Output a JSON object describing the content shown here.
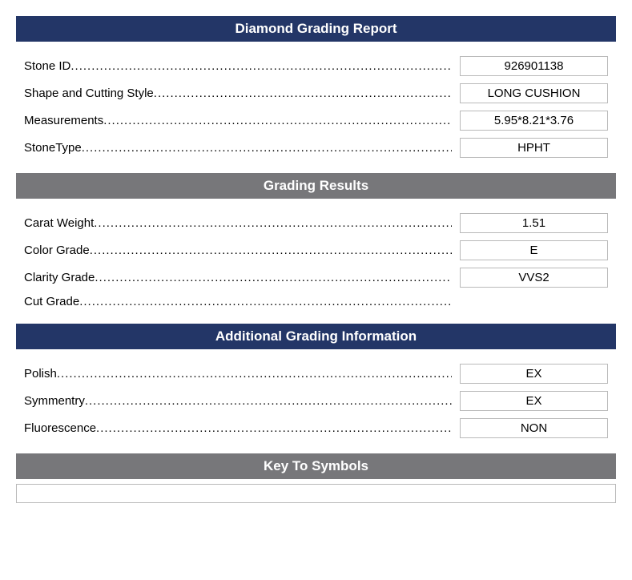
{
  "colors": {
    "header_blue_bg": "#233667",
    "header_gray_bg": "#77777a",
    "header_text": "#ffffff",
    "body_text": "#000000",
    "border": "#b9b9b9",
    "background": "#ffffff"
  },
  "report": {
    "title": "Diamond Grading Report",
    "fields": {
      "stone_id": {
        "label": "Stone ID",
        "value": "926901138"
      },
      "shape": {
        "label": "Shape and Cutting Style",
        "value": "LONG CUSHION"
      },
      "measurements": {
        "label": "Measurements",
        "value": "5.95*8.21*3.76"
      },
      "stone_type": {
        "label": "StoneType",
        "value": "HPHT"
      }
    }
  },
  "grading": {
    "title": "Grading Results",
    "fields": {
      "carat": {
        "label": "Carat Weight",
        "value": "1.51"
      },
      "color": {
        "label": "Color Grade",
        "value": "E"
      },
      "clarity": {
        "label": "Clarity Grade",
        "value": "VVS2"
      },
      "cut": {
        "label": "Cut Grade",
        "value": ""
      }
    }
  },
  "additional": {
    "title": "Additional Grading Information",
    "fields": {
      "polish": {
        "label": "Polish",
        "value": "EX"
      },
      "symmetry": {
        "label": "Symmentry",
        "value": "EX"
      },
      "fluorescence": {
        "label": "Fluorescence",
        "value": "NON"
      }
    }
  },
  "symbols": {
    "title": "Key To Symbols"
  }
}
